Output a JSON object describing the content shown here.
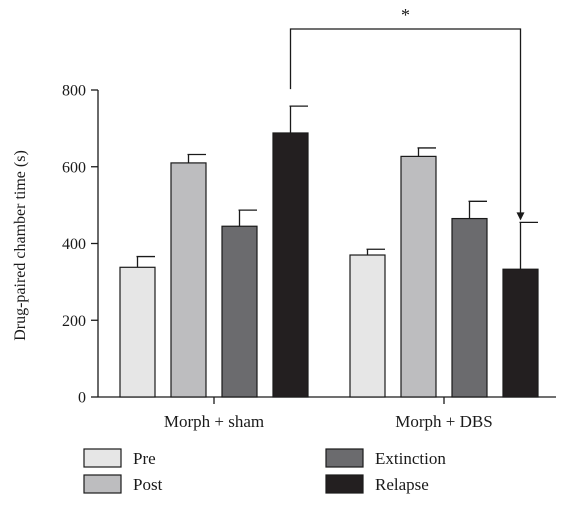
{
  "chart_data": {
    "type": "bar",
    "title": "",
    "xlabel": "",
    "ylabel": "Drug-paired chamber time (s)",
    "ylim": [
      0,
      800
    ],
    "yticks": [
      0,
      200,
      400,
      600,
      800
    ],
    "categories": [
      "Morph + sham",
      "Morph + DBS"
    ],
    "series": [
      {
        "name": "Pre",
        "color": "#e6e6e6",
        "values": [
          338,
          370
        ],
        "errors": [
          28,
          15
        ]
      },
      {
        "name": "Post",
        "color": "#bdbdbf",
        "values": [
          610,
          627
        ],
        "errors": [
          22,
          22
        ]
      },
      {
        "name": "Extinction",
        "color": "#6b6b6e",
        "values": [
          445,
          465
        ],
        "errors": [
          42,
          45
        ]
      },
      {
        "name": "Relapse",
        "color": "#231f20",
        "values": [
          688,
          333
        ],
        "errors": [
          70,
          122
        ]
      }
    ],
    "annotations": [
      {
        "text": "*",
        "from": {
          "category": 0,
          "series": 3
        },
        "to": {
          "category": 1,
          "series": 3
        }
      }
    ],
    "legend_position": "bottom",
    "grid": false
  }
}
